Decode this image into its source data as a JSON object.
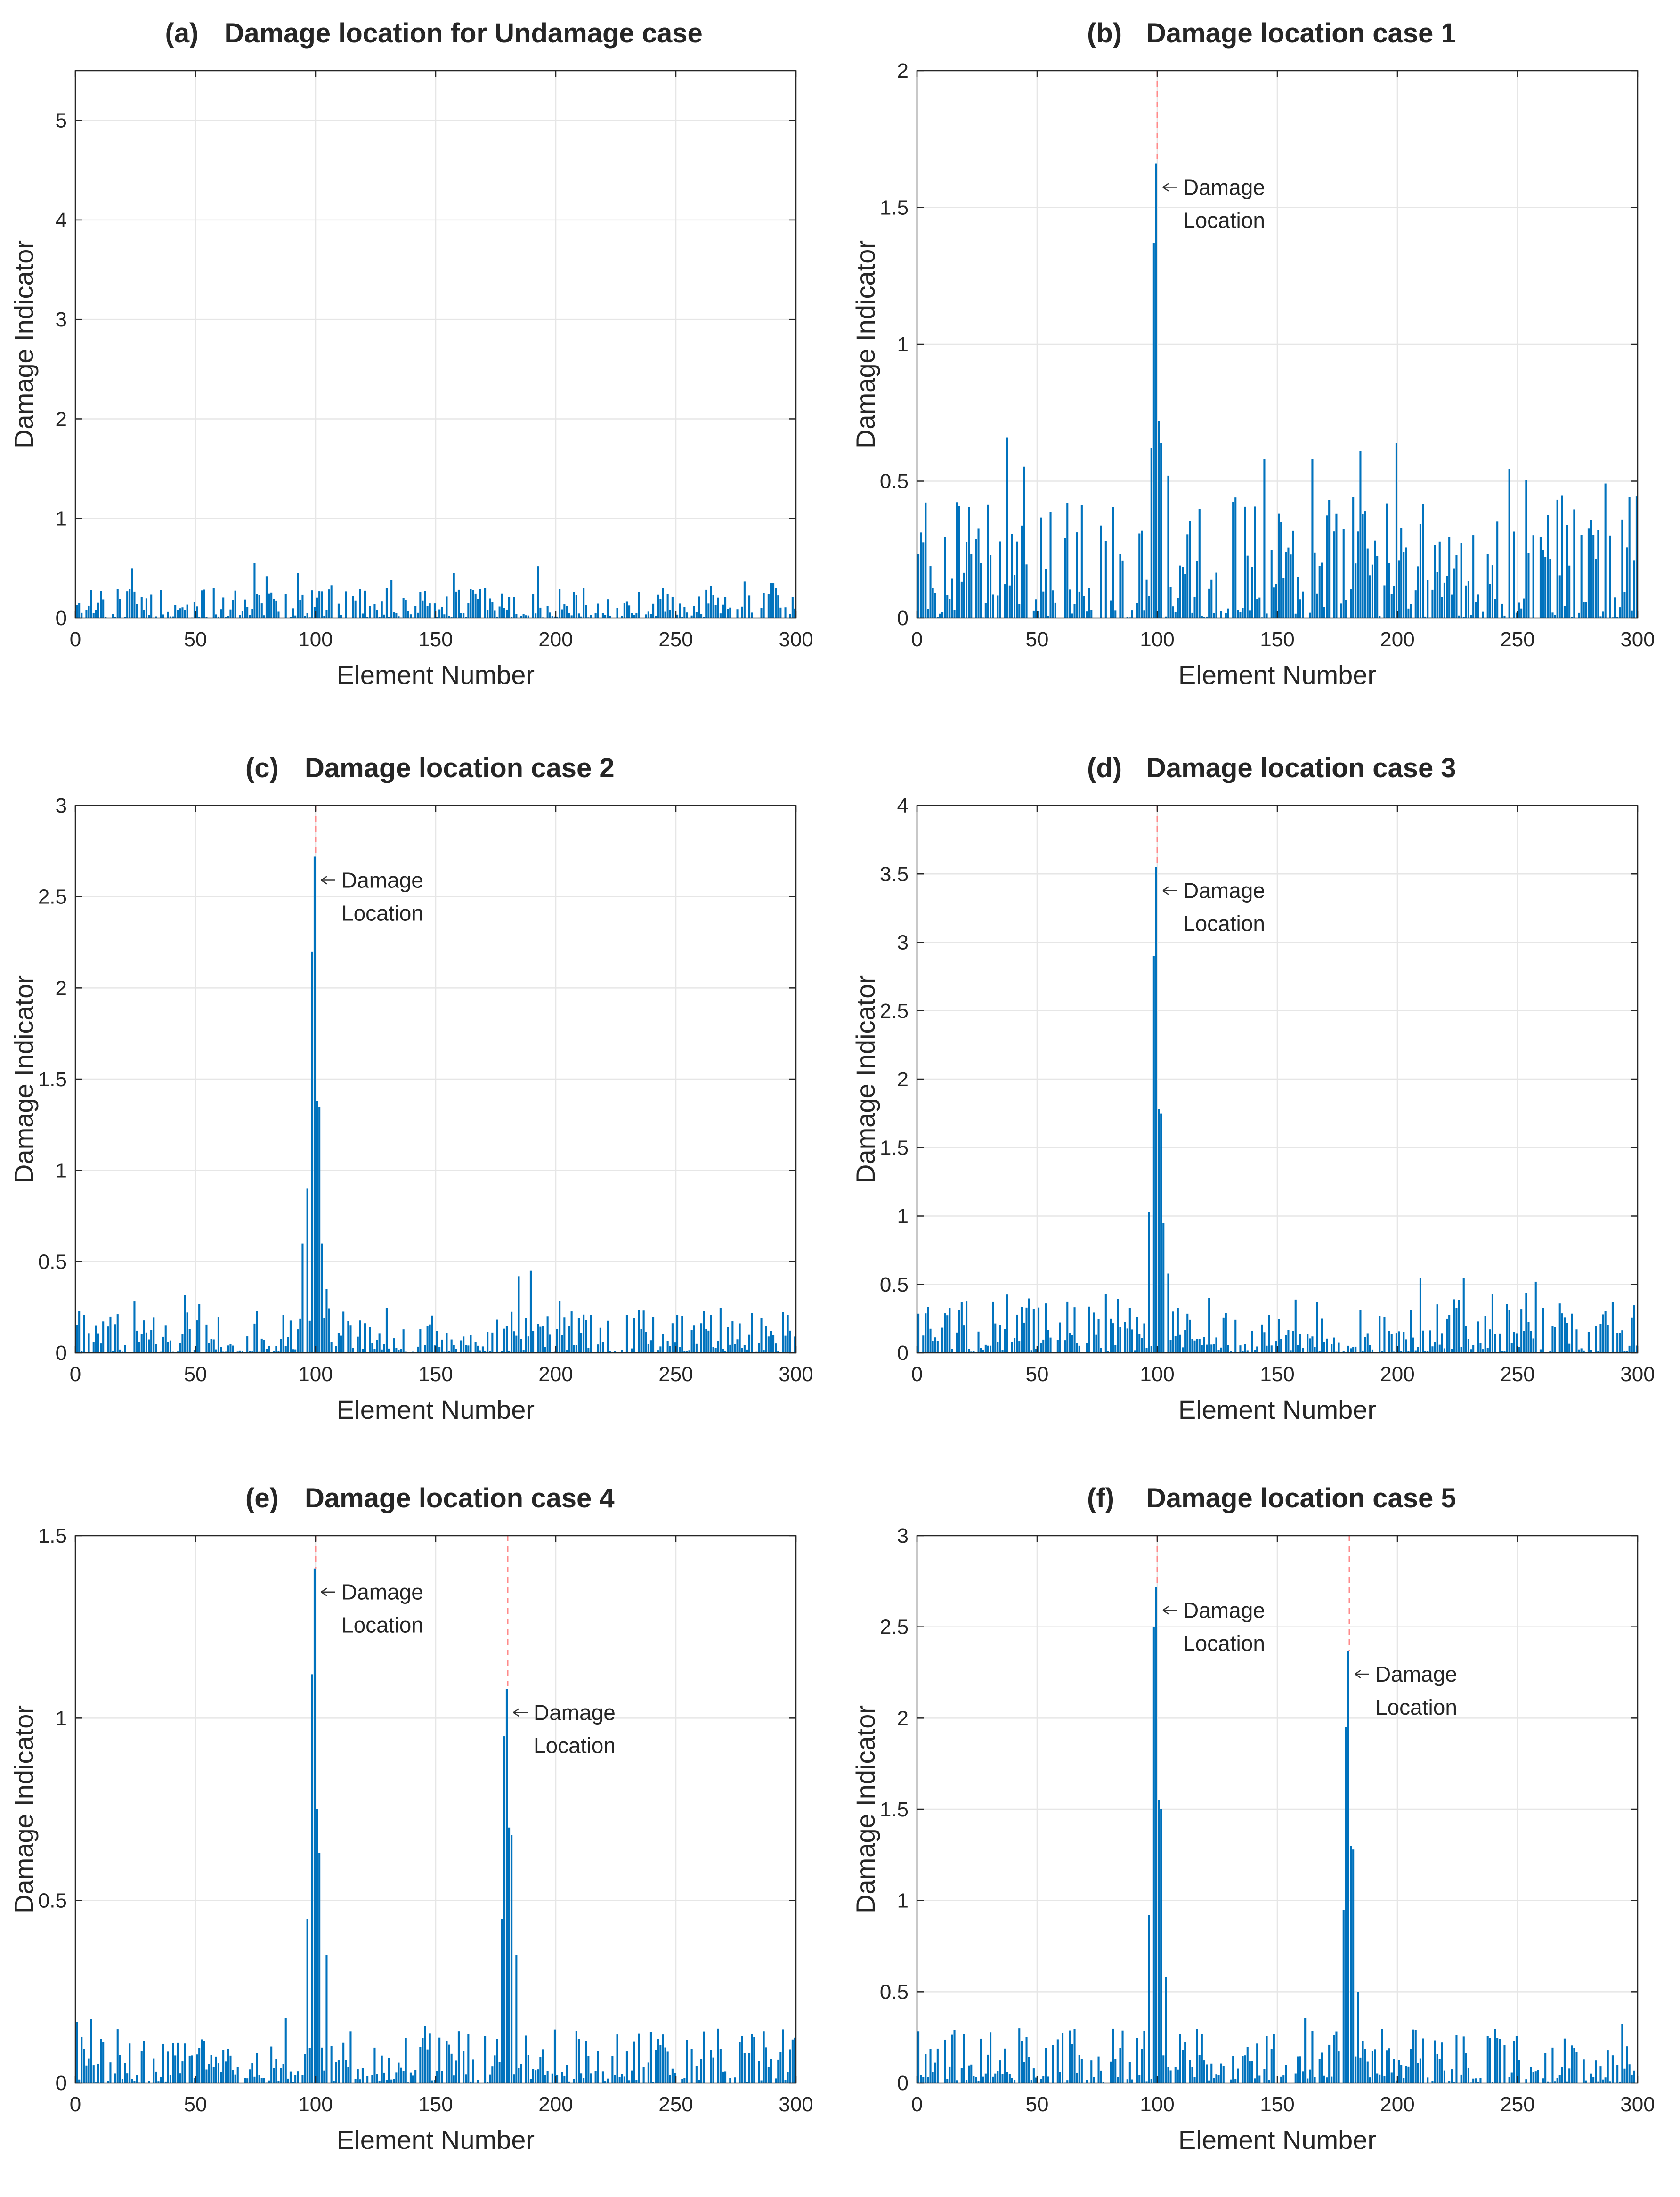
{
  "figure": {
    "panels": [
      {
        "letter": "(a)",
        "title": "Damage location for Undamage case",
        "xlabel": "Element Number",
        "ylabel": "Damage Indicator",
        "xlim": [
          0,
          300
        ],
        "ylim": [
          0,
          5.5
        ],
        "xticks": [
          0,
          50,
          100,
          150,
          200,
          250,
          300
        ],
        "yticks": [
          0,
          1,
          2,
          3,
          4,
          5
        ],
        "damage_locations": []
      },
      {
        "letter": "(b)",
        "title": "Damage location case 1",
        "xlabel": "Element Number",
        "ylabel": "Damage Indicator",
        "xlim": [
          0,
          300
        ],
        "ylim": [
          0,
          2
        ],
        "xticks": [
          0,
          50,
          100,
          150,
          200,
          250,
          300
        ],
        "yticks": [
          0,
          0.5,
          1,
          1.5,
          2
        ],
        "damage_locations": [
          {
            "element": 100,
            "value": 1.66,
            "label1": "Damage",
            "label2": "Location"
          }
        ]
      },
      {
        "letter": "(c)",
        "title": "Damage location case 2",
        "xlabel": "Element Number",
        "ylabel": "Damage Indicator",
        "xlim": [
          0,
          300
        ],
        "ylim": [
          0,
          3
        ],
        "xticks": [
          0,
          50,
          100,
          150,
          200,
          250,
          300
        ],
        "yticks": [
          0,
          0.5,
          1,
          1.5,
          2,
          2.5,
          3
        ],
        "damage_locations": [
          {
            "element": 100,
            "value": 2.72,
            "label1": "Damage",
            "label2": "Location"
          }
        ]
      },
      {
        "letter": "(d)",
        "title": "Damage location case 3",
        "xlabel": "Element Number",
        "ylabel": "Damage Indicator",
        "xlim": [
          0,
          300
        ],
        "ylim": [
          0,
          4
        ],
        "xticks": [
          0,
          50,
          100,
          150,
          200,
          250,
          300
        ],
        "yticks": [
          0,
          0.5,
          1,
          1.5,
          2,
          2.5,
          3,
          3.5,
          4
        ],
        "damage_locations": [
          {
            "element": 100,
            "value": 3.55,
            "label1": "Damage",
            "label2": "Location"
          }
        ]
      },
      {
        "letter": "(e)",
        "title": "Damage location case 4",
        "xlabel": "Element Number",
        "ylabel": "Damage Indicator",
        "xlim": [
          0,
          300
        ],
        "ylim": [
          0,
          1.5
        ],
        "xticks": [
          0,
          50,
          100,
          150,
          200,
          250,
          300
        ],
        "yticks": [
          0,
          0.5,
          1,
          1.5
        ],
        "damage_locations": [
          {
            "element": 100,
            "value": 1.41,
            "label1": "Damage",
            "label2": "Location"
          },
          {
            "element": 180,
            "value": 1.08,
            "label1": "Damage",
            "label2": "Location"
          }
        ]
      },
      {
        "letter": "(f)",
        "title": "Damage location case 5",
        "xlabel": "Element Number",
        "ylabel": "Damage Indicator",
        "xlim": [
          0,
          300
        ],
        "ylim": [
          0,
          3
        ],
        "xticks": [
          0,
          50,
          100,
          150,
          200,
          250,
          300
        ],
        "yticks": [
          0,
          0.5,
          1,
          1.5,
          2,
          2.5,
          3
        ],
        "damage_locations": [
          {
            "element": 100,
            "value": 2.72,
            "label1": "Damage",
            "label2": "Location"
          },
          {
            "element": 180,
            "value": 2.37,
            "label1": "Damage",
            "label2": "Location"
          }
        ]
      }
    ]
  },
  "chart_data": [
    {
      "type": "bar",
      "panel": "a",
      "title": "(a)  Damage location for Undamage case",
      "xlabel": "Element Number",
      "ylabel": "Damage Indicator",
      "xlim": [
        0,
        300
      ],
      "ylim": [
        0,
        5.5
      ],
      "grid": true,
      "baseline_noise_max": 0.3,
      "peaks": [
        [
          24,
          0.5
        ],
        [
          36,
          0.28
        ],
        [
          58,
          0.3
        ],
        [
          75,
          0.55
        ],
        [
          80,
          0.42
        ],
        [
          93,
          0.45
        ],
        [
          107,
          0.33
        ],
        [
          130,
          0.3
        ],
        [
          158,
          0.45
        ],
        [
          171,
          0.3
        ],
        [
          193,
          0.52
        ],
        [
          212,
          0.3
        ],
        [
          245,
          0.3
        ],
        [
          265,
          0.32
        ],
        [
          292,
          0.3
        ]
      ],
      "x": [
        0,
        20,
        40,
        60,
        80,
        100,
        120,
        140,
        160,
        180,
        200,
        220,
        240,
        260,
        280,
        300
      ],
      "values": [
        0.1,
        0.12,
        0.1,
        0.11,
        0.13,
        0.1,
        0.12,
        0.1,
        0.14,
        0.11,
        0.12,
        0.1,
        0.11,
        0.12,
        0.11,
        0.1
      ]
    },
    {
      "type": "bar",
      "panel": "b",
      "title": "(b)  Damage location case 1",
      "xlabel": "Element Number",
      "ylabel": "Damage Indicator",
      "xlim": [
        0,
        300
      ],
      "ylim": [
        0,
        2
      ],
      "grid": true,
      "baseline_noise_max": 0.45,
      "peaks": [
        [
          38,
          0.66
        ],
        [
          98,
          0.62
        ],
        [
          99,
          1.37
        ],
        [
          100,
          1.66
        ],
        [
          101,
          0.72
        ],
        [
          102,
          0.64
        ],
        [
          105,
          0.52
        ],
        [
          145,
          0.58
        ],
        [
          165,
          0.58
        ],
        [
          185,
          0.61
        ],
        [
          200,
          0.64
        ]
      ],
      "x": [
        0,
        20,
        40,
        60,
        80,
        100,
        120,
        140,
        160,
        180,
        200,
        220,
        240,
        260,
        280,
        300
      ],
      "values": [
        0.18,
        0.2,
        0.22,
        0.15,
        0.2,
        1.66,
        0.2,
        0.18,
        0.14,
        0.16,
        0.2,
        0.17,
        0.15,
        0.16,
        0.19,
        0.2
      ]
    },
    {
      "type": "bar",
      "panel": "c",
      "title": "(c)  Damage location case 2",
      "xlabel": "Element Number",
      "ylabel": "Damage Indicator",
      "xlim": [
        0,
        300
      ],
      "ylim": [
        0,
        3
      ],
      "grid": true,
      "baseline_noise_max": 0.25,
      "peaks": [
        [
          95,
          0.6
        ],
        [
          97,
          0.9
        ],
        [
          99,
          2.2
        ],
        [
          100,
          2.72
        ],
        [
          101,
          1.38
        ],
        [
          102,
          1.35
        ],
        [
          103,
          0.6
        ],
        [
          105,
          0.35
        ],
        [
          190,
          0.45
        ],
        [
          185,
          0.42
        ]
      ],
      "x": [
        0,
        20,
        40,
        60,
        80,
        100,
        120,
        140,
        160,
        180,
        200,
        220,
        240,
        260,
        280,
        300
      ],
      "values": [
        0.1,
        0.12,
        0.12,
        0.11,
        0.15,
        2.72,
        0.12,
        0.1,
        0.11,
        0.13,
        0.12,
        0.1,
        0.11,
        0.12,
        0.1,
        0.11
      ]
    },
    {
      "type": "bar",
      "panel": "d",
      "title": "(d)  Damage location case 3",
      "xlabel": "Element Number",
      "ylabel": "Damage Indicator",
      "xlim": [
        0,
        300
      ],
      "ylim": [
        0,
        4
      ],
      "grid": true,
      "baseline_noise_max": 0.4,
      "peaks": [
        [
          97,
          1.03
        ],
        [
          99,
          2.9
        ],
        [
          100,
          3.55
        ],
        [
          101,
          1.78
        ],
        [
          102,
          1.75
        ],
        [
          103,
          0.95
        ],
        [
          105,
          0.58
        ],
        [
          210,
          0.55
        ],
        [
          228,
          0.55
        ],
        [
          258,
          0.52
        ]
      ],
      "x": [
        0,
        20,
        40,
        60,
        80,
        100,
        120,
        140,
        160,
        180,
        200,
        220,
        240,
        260,
        280,
        300
      ],
      "values": [
        0.2,
        0.25,
        0.22,
        0.2,
        0.3,
        3.55,
        0.2,
        0.18,
        0.08,
        0.15,
        0.14,
        0.18,
        0.13,
        0.15,
        0.13,
        0.12
      ]
    },
    {
      "type": "bar",
      "panel": "e",
      "title": "(e)  Damage location case 4",
      "xlabel": "Element Number",
      "ylabel": "Damage Indicator",
      "xlim": [
        0,
        300
      ],
      "ylim": [
        0,
        1.5
      ],
      "grid": true,
      "baseline_noise_max": 0.15,
      "peaks": [
        [
          97,
          0.45
        ],
        [
          99,
          1.12
        ],
        [
          100,
          1.41
        ],
        [
          101,
          0.75
        ],
        [
          102,
          0.63
        ],
        [
          105,
          0.35
        ],
        [
          178,
          0.45
        ],
        [
          179,
          0.95
        ],
        [
          180,
          1.08
        ],
        [
          181,
          0.7
        ],
        [
          182,
          0.68
        ],
        [
          184,
          0.35
        ]
      ],
      "x": [
        0,
        20,
        40,
        60,
        80,
        100,
        120,
        140,
        160,
        180,
        200,
        220,
        240,
        260,
        280,
        300
      ],
      "values": [
        0.07,
        0.09,
        0.08,
        0.07,
        0.1,
        1.41,
        0.1,
        0.08,
        0.1,
        1.08,
        0.09,
        0.08,
        0.08,
        0.09,
        0.08,
        0.08
      ]
    },
    {
      "type": "bar",
      "panel": "f",
      "title": "(f)  Damage location case 5",
      "xlabel": "Element Number",
      "ylabel": "Damage Indicator",
      "xlim": [
        0,
        300
      ],
      "ylim": [
        0,
        3
      ],
      "grid": true,
      "baseline_noise_max": 0.3,
      "peaks": [
        [
          97,
          0.92
        ],
        [
          99,
          2.5
        ],
        [
          100,
          2.72
        ],
        [
          101,
          1.55
        ],
        [
          102,
          1.5
        ],
        [
          104,
          0.58
        ],
        [
          178,
          0.95
        ],
        [
          179,
          1.95
        ],
        [
          180,
          2.37
        ],
        [
          181,
          1.3
        ],
        [
          182,
          1.28
        ],
        [
          184,
          0.5
        ]
      ],
      "x": [
        0,
        20,
        40,
        60,
        80,
        100,
        120,
        140,
        160,
        180,
        200,
        220,
        240,
        260,
        280,
        300
      ],
      "values": [
        0.12,
        0.15,
        0.14,
        0.12,
        0.18,
        2.72,
        0.14,
        0.12,
        0.13,
        2.37,
        0.14,
        0.13,
        0.14,
        0.15,
        0.14,
        0.15
      ]
    }
  ]
}
